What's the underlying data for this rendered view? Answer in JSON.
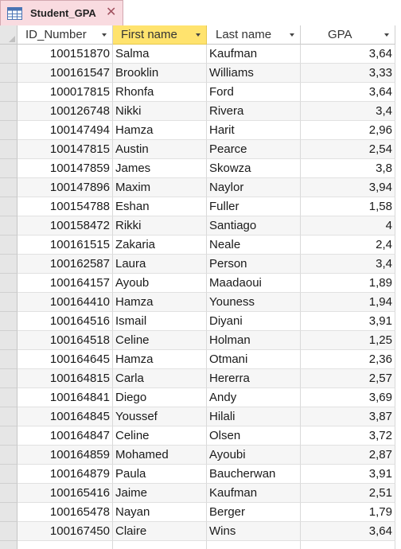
{
  "tab": {
    "label": "Student_GPA",
    "close_glyph": "✕",
    "icon": "table-icon"
  },
  "columns": [
    {
      "key": "id",
      "label": "ID_Number"
    },
    {
      "key": "first",
      "label": "First name"
    },
    {
      "key": "last",
      "label": "Last name"
    },
    {
      "key": "gpa",
      "label": "GPA"
    }
  ],
  "rows": [
    {
      "id": "100151870",
      "first": "Salma",
      "last": "Kaufman",
      "gpa": "3,64"
    },
    {
      "id": "100161547",
      "first": "Brooklin",
      "last": "Williams",
      "gpa": "3,33"
    },
    {
      "id": "100017815",
      "first": "Rhonfa",
      "last": "Ford",
      "gpa": "3,64"
    },
    {
      "id": "100126748",
      "first": "Nikki",
      "last": "Rivera",
      "gpa": "3,4"
    },
    {
      "id": "100147494",
      "first": "Hamza",
      "last": "Harit",
      "gpa": "2,96"
    },
    {
      "id": "100147815",
      "first": "Austin",
      "last": "Pearce",
      "gpa": "2,54"
    },
    {
      "id": "100147859",
      "first": "James",
      "last": "Skowza",
      "gpa": "3,8"
    },
    {
      "id": "100147896",
      "first": "Maxim",
      "last": "Naylor",
      "gpa": "3,94"
    },
    {
      "id": "100154788",
      "first": "Eshan",
      "last": "Fuller",
      "gpa": "1,58"
    },
    {
      "id": "100158472",
      "first": "Rikki",
      "last": "Santiago",
      "gpa": "4"
    },
    {
      "id": "100161515",
      "first": "Zakaria",
      "last": "Neale",
      "gpa": "2,4"
    },
    {
      "id": "100162587",
      "first": "Laura",
      "last": "Person",
      "gpa": "3,4"
    },
    {
      "id": "100164157",
      "first": "Ayoub",
      "last": "Maadaoui",
      "gpa": "1,89"
    },
    {
      "id": "100164410",
      "first": "Hamza",
      "last": "Youness",
      "gpa": "1,94"
    },
    {
      "id": "100164516",
      "first": "Ismail",
      "last": "Diyani",
      "gpa": "3,91"
    },
    {
      "id": "100164518",
      "first": "Celine",
      "last": "Holman",
      "gpa": "1,25"
    },
    {
      "id": "100164645",
      "first": "Hamza",
      "last": "Otmani",
      "gpa": "2,36"
    },
    {
      "id": "100164815",
      "first": "Carla",
      "last": "Hererra",
      "gpa": "2,57"
    },
    {
      "id": "100164841",
      "first": "Diego",
      "last": "Andy",
      "gpa": "3,69"
    },
    {
      "id": "100164845",
      "first": "Youssef",
      "last": "Hilali",
      "gpa": "3,87"
    },
    {
      "id": "100164847",
      "first": "Celine",
      "last": "Olsen",
      "gpa": "3,72"
    },
    {
      "id": "100164859",
      "first": "Mohamed",
      "last": "Ayoubi",
      "gpa": "2,87"
    },
    {
      "id": "100164879",
      "first": "Paula",
      "last": "Baucherwan",
      "gpa": "3,91"
    },
    {
      "id": "100165416",
      "first": "Jaime",
      "last": "Kaufman",
      "gpa": "2,51"
    },
    {
      "id": "100165478",
      "first": "Nayan",
      "last": "Berger",
      "gpa": "1,79"
    },
    {
      "id": "100167450",
      "first": "Claire",
      "last": "Wins",
      "gpa": "3,64"
    }
  ],
  "colors": {
    "tab_bg": "#f9dbe0",
    "selected_header": "#ffe36e",
    "selector_bg": "#e6e6e6",
    "alt_row": "#f6f6f6"
  }
}
